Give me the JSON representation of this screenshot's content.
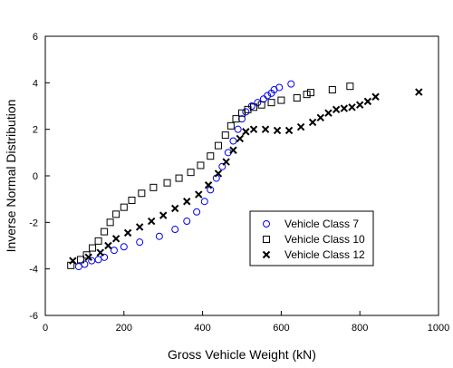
{
  "chart_data": {
    "type": "scatter",
    "title": "",
    "xlabel": "Gross Vehicle Weight (kN)",
    "ylabel": "Inverse Normal Distribution",
    "xlim": [
      0,
      1000
    ],
    "ylim": [
      -6,
      6
    ],
    "x_ticks": [
      0,
      200,
      400,
      600,
      800,
      1000
    ],
    "y_ticks": [
      -6,
      -4,
      -2,
      0,
      2,
      4,
      6
    ],
    "grid": false,
    "legend_position": "lower-right",
    "series": [
      {
        "name": "Vehicle Class 7",
        "marker": "circle",
        "color": "#0000ee",
        "points": [
          [
            85,
            -3.9
          ],
          [
            100,
            -3.8
          ],
          [
            118,
            -3.65
          ],
          [
            135,
            -3.6
          ],
          [
            150,
            -3.5
          ],
          [
            175,
            -3.2
          ],
          [
            200,
            -3.05
          ],
          [
            240,
            -2.85
          ],
          [
            290,
            -2.6
          ],
          [
            330,
            -2.3
          ],
          [
            360,
            -1.95
          ],
          [
            385,
            -1.55
          ],
          [
            405,
            -1.1
          ],
          [
            420,
            -0.6
          ],
          [
            435,
            -0.1
          ],
          [
            450,
            0.4
          ],
          [
            465,
            1.0
          ],
          [
            478,
            1.5
          ],
          [
            490,
            2.0
          ],
          [
            500,
            2.45
          ],
          [
            510,
            2.75
          ],
          [
            525,
            3.0
          ],
          [
            540,
            3.15
          ],
          [
            555,
            3.3
          ],
          [
            565,
            3.45
          ],
          [
            575,
            3.55
          ],
          [
            582,
            3.7
          ],
          [
            595,
            3.8
          ],
          [
            625,
            3.95
          ]
        ]
      },
      {
        "name": "Vehicle Class 10",
        "marker": "square",
        "color": "#000000",
        "points": [
          [
            65,
            -3.85
          ],
          [
            90,
            -3.6
          ],
          [
            105,
            -3.4
          ],
          [
            120,
            -3.1
          ],
          [
            135,
            -2.8
          ],
          [
            150,
            -2.4
          ],
          [
            165,
            -2.0
          ],
          [
            180,
            -1.65
          ],
          [
            200,
            -1.35
          ],
          [
            220,
            -1.05
          ],
          [
            245,
            -0.75
          ],
          [
            275,
            -0.5
          ],
          [
            310,
            -0.3
          ],
          [
            340,
            -0.1
          ],
          [
            370,
            0.15
          ],
          [
            395,
            0.45
          ],
          [
            420,
            0.85
          ],
          [
            440,
            1.3
          ],
          [
            458,
            1.75
          ],
          [
            472,
            2.15
          ],
          [
            485,
            2.45
          ],
          [
            500,
            2.7
          ],
          [
            515,
            2.85
          ],
          [
            530,
            2.95
          ],
          [
            550,
            3.05
          ],
          [
            575,
            3.15
          ],
          [
            600,
            3.25
          ],
          [
            640,
            3.35
          ],
          [
            665,
            3.5
          ],
          [
            675,
            3.58
          ],
          [
            730,
            3.7
          ],
          [
            775,
            3.85
          ]
        ]
      },
      {
        "name": "Vehicle Class 12",
        "marker": "x",
        "color": "#000000",
        "points": [
          [
            70,
            -3.65
          ],
          [
            110,
            -3.5
          ],
          [
            140,
            -3.3
          ],
          [
            160,
            -3.0
          ],
          [
            180,
            -2.7
          ],
          [
            210,
            -2.45
          ],
          [
            240,
            -2.2
          ],
          [
            270,
            -1.95
          ],
          [
            300,
            -1.7
          ],
          [
            330,
            -1.4
          ],
          [
            360,
            -1.1
          ],
          [
            390,
            -0.8
          ],
          [
            415,
            -0.4
          ],
          [
            440,
            0.1
          ],
          [
            460,
            0.6
          ],
          [
            478,
            1.1
          ],
          [
            495,
            1.6
          ],
          [
            510,
            1.9
          ],
          [
            530,
            2.0
          ],
          [
            560,
            2.0
          ],
          [
            590,
            1.95
          ],
          [
            620,
            1.95
          ],
          [
            650,
            2.1
          ],
          [
            680,
            2.3
          ],
          [
            700,
            2.5
          ],
          [
            720,
            2.7
          ],
          [
            740,
            2.85
          ],
          [
            760,
            2.9
          ],
          [
            780,
            2.95
          ],
          [
            800,
            3.05
          ],
          [
            820,
            3.2
          ],
          [
            840,
            3.4
          ],
          [
            950,
            3.6
          ]
        ]
      }
    ]
  }
}
